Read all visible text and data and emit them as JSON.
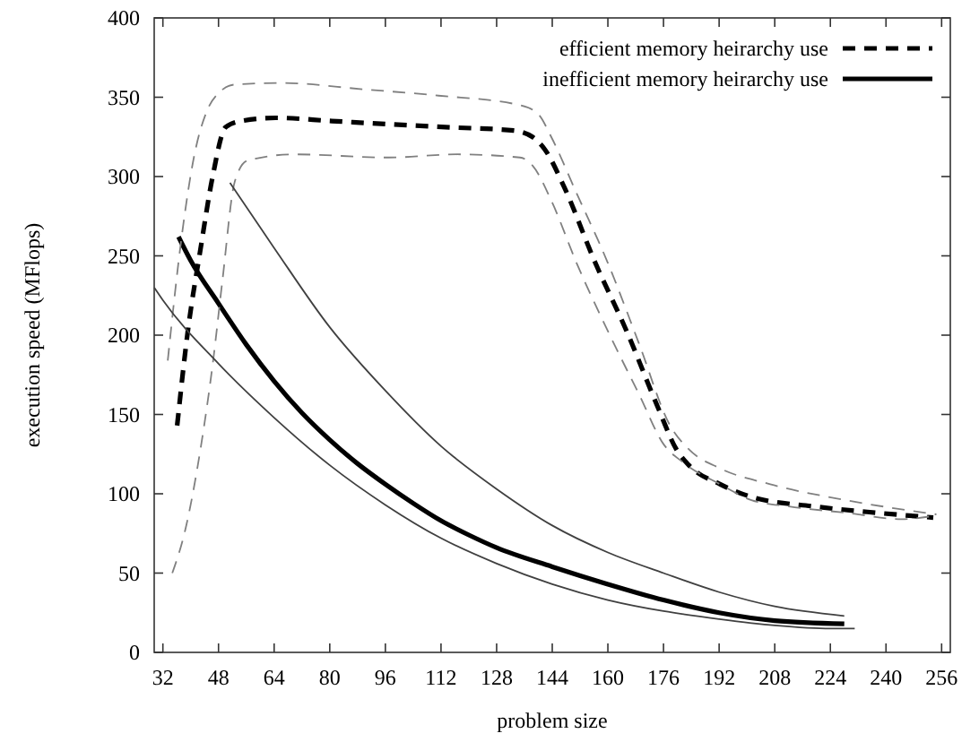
{
  "chart_data": {
    "type": "line",
    "xlabel": "problem size",
    "ylabel": "execution speed (MFlops)",
    "xlim": [
      29.5,
      258.5
    ],
    "ylim": [
      0,
      400
    ],
    "xticks": [
      32,
      48,
      64,
      80,
      96,
      112,
      128,
      144,
      160,
      176,
      192,
      208,
      224,
      240,
      256
    ],
    "yticks": [
      0,
      50,
      100,
      150,
      200,
      250,
      300,
      350,
      400
    ],
    "grid": false,
    "legend": "top right",
    "marker": "none",
    "series": [
      {
        "name": "efficient memory heirarchy use",
        "color": "#000000",
        "line_style": "dashed",
        "x": [
          36.1,
          39.2,
          42.8,
          46.4,
          50,
          54.5,
          64.4,
          80.6,
          96.9,
          114.9,
          132.9,
          138.3,
          141.9,
          147.3,
          156.3,
          165.3,
          174.3,
          179.7,
          183.3,
          192.3,
          201.3,
          219.4,
          237.4,
          253.6
        ],
        "values": [
          143,
          203,
          254,
          301,
          331,
          335,
          337,
          335,
          333,
          331,
          329,
          325,
          317,
          294,
          246,
          203,
          155,
          128,
          118,
          106,
          98,
          92,
          88,
          85
        ]
      },
      {
        "name": "inefficient memory heirarchy use",
        "color": "#000000",
        "line_style": "solid",
        "x": [
          36.5,
          40,
          48,
          56,
          64,
          72,
          80,
          88,
          96,
          104,
          112,
          120,
          128,
          144,
          160,
          176,
          192,
          208,
          228
        ],
        "values": [
          262,
          247,
          220,
          194,
          171,
          151,
          134,
          119,
          106,
          94,
          83,
          74,
          66,
          54,
          43,
          33,
          25,
          20,
          18
        ]
      },
      {
        "color": "#808080",
        "line_style": "dashed",
        "x": [
          33.4,
          37.4,
          41,
          44.6,
          48.2,
          52.7,
          66.2,
          89.7,
          111.3,
          134.7,
          140.1,
          143.7,
          150.9,
          159.9,
          168.9,
          177.9,
          183.3,
          192.3,
          206.7,
          228.4,
          254.5
        ],
        "values": [
          184,
          262,
          313,
          341,
          353,
          358,
          359,
          355,
          351,
          345,
          339,
          325,
          290,
          246,
          195,
          143,
          128,
          116,
          106,
          96,
          87
        ]
      },
      {
        "color": "#808080",
        "line_style": "dashed",
        "x": [
          34.7,
          38.3,
          42.8,
          46.4,
          49.1,
          52.7,
          56.3,
          69.8,
          96.9,
          116.7,
          134.7,
          138.3,
          143.7,
          150.9,
          159.9,
          168.9,
          176.1,
          181.5,
          192.3,
          201.3,
          212.1,
          228.4,
          244.5,
          253.6
        ],
        "values": [
          50,
          76,
          128,
          183,
          234,
          297,
          310,
          314,
          312,
          314,
          312,
          307,
          285,
          246,
          203,
          163,
          131,
          120,
          106,
          96,
          92,
          88,
          84,
          86
        ]
      },
      {
        "color": "#404040",
        "line_style": "solid",
        "x": [
          51.3,
          64,
          80,
          96,
          112,
          128,
          144,
          160,
          176,
          192,
          208,
          228
        ],
        "values": [
          296,
          255,
          205,
          165,
          130,
          103,
          80,
          63,
          50,
          38,
          29,
          23
        ]
      },
      {
        "color": "#404040",
        "line_style": "solid",
        "x": [
          29.5,
          32,
          48,
          64,
          80,
          96,
          112,
          128,
          144,
          160,
          176,
          192,
          208,
          224,
          231
        ],
        "values": [
          230,
          222,
          182,
          148,
          118,
          93,
          72,
          56,
          43,
          33,
          26,
          21,
          17,
          15,
          15
        ]
      }
    ]
  }
}
